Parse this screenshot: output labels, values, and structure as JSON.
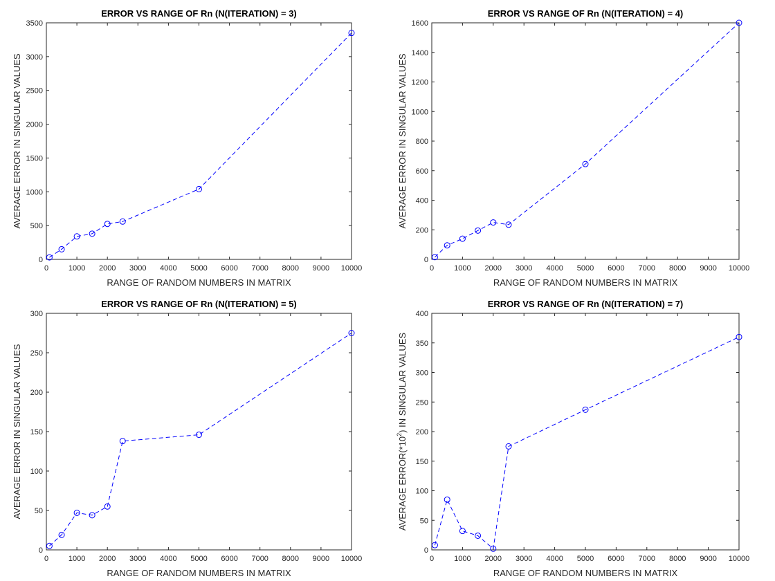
{
  "chart_data": [
    {
      "type": "line",
      "title": "ERROR VS RANGE OF Rn (N(ITERATION) = 3)",
      "xlabel": "RANGE OF RANDOM NUMBERS IN MATRIX",
      "ylabel": "AVERAGE ERROR IN SINGULAR VALUES",
      "ylabel_sup": "",
      "ylabel_suffix": "",
      "xlim": [
        0,
        10000
      ],
      "ylim": [
        0,
        3500
      ],
      "xticks": [
        0,
        1000,
        2000,
        3000,
        4000,
        5000,
        6000,
        7000,
        8000,
        9000,
        10000
      ],
      "yticks": [
        0,
        500,
        1000,
        1500,
        2000,
        2500,
        3000,
        3500
      ],
      "grid": false,
      "series": [
        {
          "color": "#0000ff",
          "line_style": "dashed",
          "marker": "circle",
          "x": [
            100,
            500,
            1000,
            1500,
            2000,
            2500,
            5000,
            10000
          ],
          "y": [
            30,
            150,
            340,
            380,
            525,
            560,
            1040,
            3350
          ]
        }
      ]
    },
    {
      "type": "line",
      "title": "ERROR VS RANGE OF Rn (N(ITERATION) = 4)",
      "xlabel": "RANGE OF RANDOM NUMBERS IN MATRIX",
      "ylabel": "AVERAGE ERROR IN SINGULAR VALUES",
      "ylabel_sup": "",
      "ylabel_suffix": "",
      "xlim": [
        0,
        10000
      ],
      "ylim": [
        0,
        1600
      ],
      "xticks": [
        0,
        1000,
        2000,
        3000,
        4000,
        5000,
        6000,
        7000,
        8000,
        9000,
        10000
      ],
      "yticks": [
        0,
        200,
        400,
        600,
        800,
        1000,
        1200,
        1400,
        1600
      ],
      "grid": false,
      "series": [
        {
          "color": "#0000ff",
          "line_style": "dashed",
          "marker": "circle",
          "x": [
            100,
            500,
            1000,
            1500,
            2000,
            2500,
            5000,
            10000
          ],
          "y": [
            15,
            95,
            140,
            195,
            250,
            235,
            645,
            1600
          ]
        }
      ]
    },
    {
      "type": "line",
      "title": "ERROR VS RANGE OF Rn (N(ITERATION) = 5)",
      "xlabel": "RANGE OF RANDOM NUMBERS IN MATRIX",
      "ylabel": "AVERAGE ERROR IN SINGULAR VALUES",
      "ylabel_sup": "",
      "ylabel_suffix": "",
      "xlim": [
        0,
        10000
      ],
      "ylim": [
        0,
        300
      ],
      "xticks": [
        0,
        1000,
        2000,
        3000,
        4000,
        5000,
        6000,
        7000,
        8000,
        9000,
        10000
      ],
      "yticks": [
        0,
        50,
        100,
        150,
        200,
        250,
        300
      ],
      "grid": false,
      "series": [
        {
          "color": "#0000ff",
          "line_style": "dashed",
          "marker": "circle",
          "x": [
            100,
            500,
            1000,
            1500,
            2000,
            2500,
            5000,
            10000
          ],
          "y": [
            5,
            19,
            47,
            44,
            55,
            138,
            146,
            275
          ]
        }
      ]
    },
    {
      "type": "line",
      "title": "ERROR VS RANGE OF Rn (N(ITERATION) = 7)",
      "xlabel": "RANGE OF RANDOM NUMBERS IN MATRIX",
      "ylabel": "AVERAGE ERROR(*10",
      "ylabel_sup": "2",
      "ylabel_suffix": ") IN SINGULAR VALUES",
      "xlim": [
        0,
        10000
      ],
      "ylim": [
        0,
        400
      ],
      "xticks": [
        0,
        1000,
        2000,
        3000,
        4000,
        5000,
        6000,
        7000,
        8000,
        9000,
        10000
      ],
      "yticks": [
        0,
        50,
        100,
        150,
        200,
        250,
        300,
        350,
        400
      ],
      "grid": false,
      "series": [
        {
          "color": "#0000ff",
          "line_style": "dashed",
          "marker": "circle",
          "x": [
            100,
            500,
            1000,
            1500,
            2000,
            2500,
            5000,
            10000
          ],
          "y": [
            8,
            85,
            32,
            24,
            2,
            175,
            237,
            360
          ]
        }
      ]
    }
  ]
}
